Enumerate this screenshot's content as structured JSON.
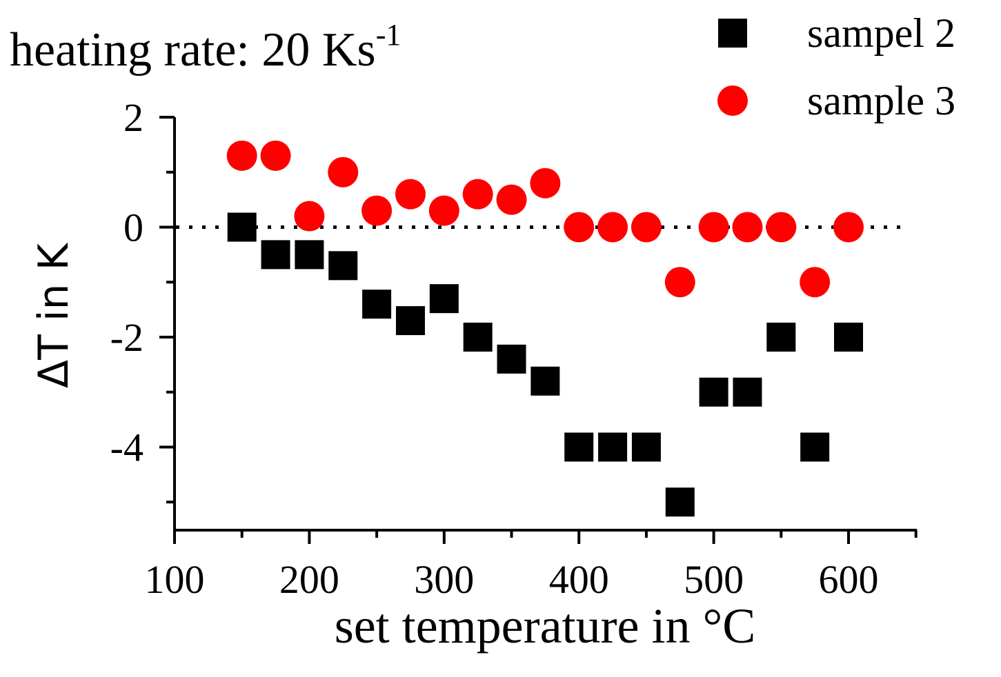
{
  "chart_data": {
    "type": "scatter",
    "title": "heating rate: 20 Ks",
    "title_superscript": "-1",
    "xlabel": "set temperature in °C",
    "ylabel": "ΔT in K",
    "xlim": [
      100,
      650
    ],
    "ylim": [
      -5.5,
      2
    ],
    "x_ticks": [
      100,
      200,
      300,
      400,
      500,
      600
    ],
    "x_tick_labels": [
      "100",
      "200",
      "300",
      "400",
      "500",
      "600"
    ],
    "y_ticks": [
      -4,
      -2,
      0,
      2
    ],
    "y_tick_labels": [
      "-4",
      "-2",
      "0",
      "2"
    ],
    "zero_reference_line": "dotted",
    "grid": false,
    "legend_position": "top-right",
    "series": [
      {
        "name": "sampel 2",
        "marker": "square",
        "color": "#000000",
        "x": [
          150,
          175,
          200,
          225,
          250,
          275,
          300,
          325,
          350,
          375,
          400,
          425,
          450,
          475,
          500,
          525,
          550,
          575,
          600
        ],
        "y": [
          0,
          -0.5,
          -0.5,
          -0.7,
          -1.4,
          -1.7,
          -1.3,
          -2.0,
          -2.4,
          -2.8,
          -4.0,
          -4.0,
          -4.0,
          -5.0,
          -3.0,
          -3.0,
          -2.0,
          -4.0,
          -2.0
        ]
      },
      {
        "name": "sample 3",
        "marker": "circle",
        "color": "#ff0000",
        "x": [
          150,
          175,
          200,
          225,
          250,
          275,
          300,
          325,
          350,
          375,
          400,
          425,
          450,
          475,
          500,
          525,
          550,
          575,
          600
        ],
        "y": [
          1.3,
          1.3,
          0.2,
          1.0,
          0.3,
          0.6,
          0.3,
          0.6,
          0.5,
          0.8,
          0,
          0,
          0,
          -1.0,
          0,
          0,
          0,
          -1.0,
          0
        ]
      }
    ]
  }
}
